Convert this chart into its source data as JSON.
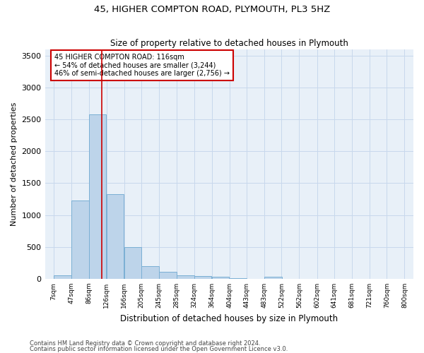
{
  "title": "45, HIGHER COMPTON ROAD, PLYMOUTH, PL3 5HZ",
  "subtitle": "Size of property relative to detached houses in Plymouth",
  "xlabel": "Distribution of detached houses by size in Plymouth",
  "ylabel": "Number of detached properties",
  "bin_labels": [
    "7sqm",
    "47sqm",
    "86sqm",
    "126sqm",
    "166sqm",
    "205sqm",
    "245sqm",
    "285sqm",
    "324sqm",
    "364sqm",
    "404sqm",
    "443sqm",
    "483sqm",
    "522sqm",
    "562sqm",
    "602sqm",
    "641sqm",
    "681sqm",
    "721sqm",
    "760sqm",
    "800sqm"
  ],
  "bin_edges": [
    7,
    47,
    86,
    126,
    166,
    205,
    245,
    285,
    324,
    364,
    404,
    443,
    483,
    522,
    562,
    602,
    641,
    681,
    721,
    760,
    800
  ],
  "bar_heights": [
    50,
    1230,
    2580,
    1330,
    500,
    195,
    105,
    50,
    40,
    30,
    5,
    0,
    30,
    0,
    0,
    0,
    0,
    0,
    0,
    0
  ],
  "bar_color": "#bdd4ea",
  "bar_edge_color": "#7aafd4",
  "grid_color": "#c8d8ec",
  "background_color": "#e8f0f8",
  "vline_x": 116,
  "vline_color": "#cc0000",
  "annotation_text": "45 HIGHER COMPTON ROAD: 116sqm\n← 54% of detached houses are smaller (3,244)\n46% of semi-detached houses are larger (2,756) →",
  "annotation_box_color": "#cc0000",
  "ylim": [
    0,
    3600
  ],
  "yticks": [
    0,
    500,
    1000,
    1500,
    2000,
    2500,
    3000,
    3500
  ],
  "footnote1": "Contains HM Land Registry data © Crown copyright and database right 2024.",
  "footnote2": "Contains public sector information licensed under the Open Government Licence v3.0.",
  "title_fontsize": 9.5,
  "subtitle_fontsize": 8.5,
  "ylabel_fontsize": 8,
  "xlabel_fontsize": 8.5
}
